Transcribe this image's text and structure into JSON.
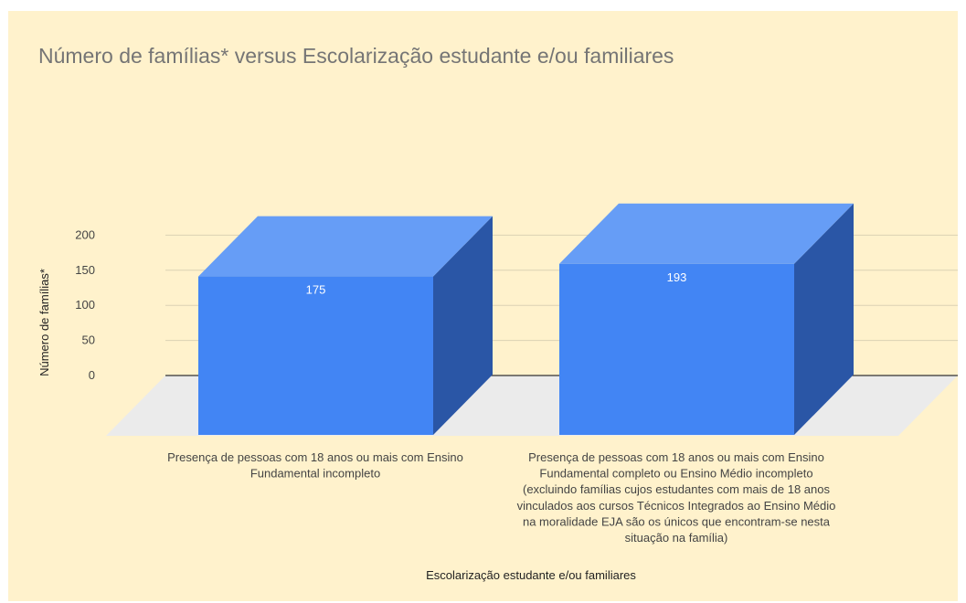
{
  "chart_data": {
    "type": "bar",
    "title": "Número de famílias* versus Escolarização estudante e/ou familiares",
    "xlabel": "Escolarização estudante e/ou familiares",
    "ylabel": "Número de famílias*",
    "ylim": [
      0,
      200
    ],
    "yticks": [
      0,
      50,
      100,
      150,
      200
    ],
    "grid": true,
    "categories": [
      [
        "Presença de pessoas com 18 anos ou mais com Ensino",
        "Fundamental incompleto"
      ],
      [
        "Presença de pessoas com 18 anos ou mais com Ensino",
        "Fundamental completo ou Ensino Médio incompleto",
        "(excluindo famílias cujos estudantes com mais de 18 anos",
        "vinculados aos cursos Técnicos Integrados ao Ensino Médio",
        "na moralidade EJA são os únicos que encontram-se nesta",
        "situação na família)"
      ]
    ],
    "values": [
      175,
      193
    ],
    "data_labels": [
      "175",
      "193"
    ],
    "colors": {
      "bar_front": "#4285f4",
      "bar_top": "#669df6",
      "bar_side": "#2a56a6",
      "floor": "#ebebeb",
      "gridline": "#dbd2b4",
      "baseline": "#333333",
      "background": "#fff2cc"
    }
  }
}
